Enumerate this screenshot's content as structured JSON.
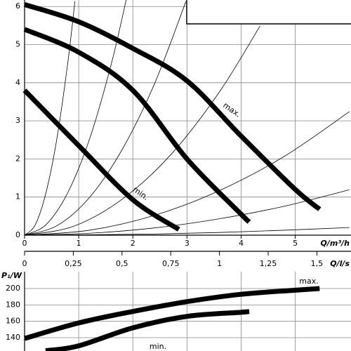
{
  "chart_data": [
    {
      "type": "line",
      "xlabel": "Q/m³/h",
      "xlim": [
        0,
        6.03
      ],
      "ylim": [
        0,
        6.17
      ],
      "xticks": [
        0,
        1,
        2,
        3,
        4,
        5
      ],
      "yticks": [
        0,
        1,
        2,
        3,
        4,
        5,
        6
      ],
      "grid": true,
      "x2label": "Q/l/s",
      "x2lim": [
        0,
        1.675
      ],
      "x2ticks": [
        0,
        {
          "value": 0.25,
          "label": "0,25"
        },
        {
          "value": 0.5,
          "label": "0,5"
        },
        {
          "value": 0.75,
          "label": "0,75"
        },
        1,
        {
          "value": 1.25,
          "label": "1,25"
        },
        {
          "value": 1.5,
          "label": "1,5"
        }
      ],
      "series": [
        {
          "name": "max.",
          "color": "#000",
          "x": [
            0,
            1,
            2,
            3,
            4,
            5,
            5.45
          ],
          "values": [
            6.05,
            5.6,
            4.9,
            4.05,
            2.6,
            1.2,
            0.68
          ]
        },
        {
          "name": null,
          "color": "#000",
          "x": [
            0,
            1,
            2,
            3,
            4,
            4.15
          ],
          "values": [
            5.4,
            4.8,
            3.8,
            2.0,
            0.55,
            0.35
          ]
        },
        {
          "name": "min.",
          "color": "#000",
          "x": [
            0,
            1,
            2,
            2.85
          ],
          "values": [
            3.8,
            2.35,
            0.93,
            0.15
          ]
        }
      ],
      "system_curves": [
        {
          "x": [
            0,
            0.2,
            0.4,
            0.6,
            0.8,
            0.93
          ],
          "values": [
            0,
            0.28,
            1.14,
            2.56,
            4.54,
            6.14
          ]
        },
        {
          "x": [
            0,
            0.4,
            0.8,
            1.2,
            1.6,
            1.88
          ],
          "values": [
            0,
            0.28,
            1.12,
            2.52,
            4.48,
            6.19
          ]
        },
        {
          "x": [
            0,
            0.6,
            1.2,
            1.8,
            2.4,
            2.98
          ],
          "values": [
            0,
            0.25,
            0.99,
            2.24,
            3.97,
            6.13
          ]
        },
        {
          "x": [
            0,
            0.9,
            1.8,
            2.7,
            3.6,
            4.35
          ],
          "values": [
            0,
            0.23,
            0.94,
            2.11,
            3.76,
            5.49
          ]
        },
        {
          "x": [
            0,
            1.2,
            2.4,
            3.6,
            4.8,
            6
          ],
          "values": [
            0,
            0.13,
            0.52,
            1.17,
            2.07,
            3.24
          ]
        },
        {
          "x": [
            0,
            1.2,
            2.4,
            3.6,
            4.8,
            6
          ],
          "values": [
            0,
            0.05,
            0.19,
            0.43,
            0.76,
            1.19
          ]
        },
        {
          "x": [
            0,
            1.2,
            2.4,
            3.6,
            4.8,
            6
          ],
          "values": [
            0,
            0.01,
            0.03,
            0.07,
            0.13,
            0.2
          ]
        }
      ]
    },
    {
      "type": "line",
      "ylabel": "P₁/W",
      "xlim": [
        0,
        6.03
      ],
      "ylim": [
        123.7,
        220.6
      ],
      "xticks": [
        0,
        1,
        2,
        3,
        4,
        5
      ],
      "yticks": [
        140,
        160,
        180,
        200
      ],
      "grid": true,
      "series": [
        {
          "name": "max.",
          "color": "#000",
          "x": [
            0,
            1,
            2,
            3,
            4,
            5,
            5.45
          ],
          "values": [
            139,
            158,
            172,
            184,
            193,
            198,
            200
          ]
        },
        {
          "name": "min.",
          "color": "#000",
          "x": [
            0.39,
            1,
            2,
            3,
            4,
            4.15
          ],
          "values": [
            124,
            130,
            152,
            166,
            171,
            172
          ]
        }
      ]
    }
  ]
}
